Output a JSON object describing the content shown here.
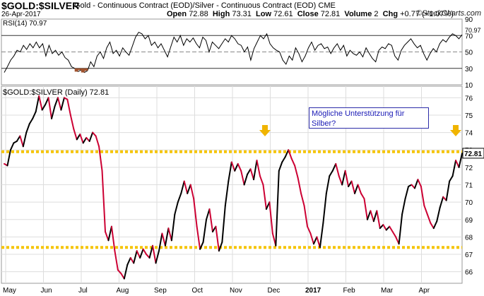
{
  "header": {
    "symbol": "$GOLD:$SILVER",
    "description": "Gold - Continuous Contract (EOD)/Silver - Continuous Contract (EOD)  CME",
    "date": "26-Apr-2017",
    "open_label": "Open",
    "open": "72.88",
    "high_label": "High",
    "high": "73.31",
    "low_label": "Low",
    "low": "72.61",
    "close_label": "Close",
    "close": "72.81",
    "volume_label": "Volume",
    "volume": "2",
    "chg_label": "Chg",
    "chg": "+0.77 (+1.07%)",
    "brand": "©StockCharts.com"
  },
  "annotation": {
    "text": "Mögliche Unterstützung für Silber?"
  },
  "colors": {
    "price_up": "#000000",
    "price_down": "#cc0033",
    "support_line": "#f5c400",
    "arrow": "#f0b400",
    "rsi_line": "#000000",
    "rsi_oversold_fill": "#a0522d",
    "grid": "#dddddd"
  },
  "chart_data": [
    {
      "type": "line",
      "title": "RSI(14) 70.97",
      "indicator": "RSI(14)",
      "last_value": "70.97",
      "ylim": [
        10,
        90
      ],
      "yticks": [
        "90",
        "70",
        "50",
        "30",
        "10"
      ],
      "reference_lines": [
        70,
        50,
        30
      ],
      "values": [
        25,
        32,
        40,
        45,
        52,
        50,
        58,
        53,
        60,
        55,
        62,
        55,
        60,
        45,
        58,
        48,
        52,
        46,
        50,
        43,
        40,
        32,
        30,
        26,
        28,
        25,
        27,
        38,
        32,
        45,
        50,
        42,
        55,
        62,
        48,
        52,
        45,
        55,
        50,
        46,
        57,
        68,
        74,
        72,
        66,
        70,
        58,
        62,
        55,
        60,
        52,
        44,
        56,
        68,
        62,
        70,
        58,
        66,
        62,
        67,
        60,
        55,
        68,
        64,
        50,
        62,
        58,
        54,
        60,
        66,
        62,
        70,
        66,
        60,
        58,
        50,
        56,
        40,
        54,
        62,
        70,
        66,
        72,
        60,
        55,
        52,
        50,
        40,
        35,
        45,
        40,
        55,
        48,
        38,
        45,
        55,
        62,
        52,
        58,
        60,
        54,
        56,
        48,
        55,
        60,
        52,
        58,
        45,
        52,
        48,
        46,
        50,
        44,
        55,
        48,
        42,
        38,
        52,
        56,
        54,
        60,
        58,
        45,
        40,
        52,
        58,
        62,
        66,
        60,
        55,
        58,
        48,
        40,
        48,
        54,
        50,
        60,
        65,
        62,
        68,
        72,
        70,
        66,
        71
      ]
    },
    {
      "type": "line",
      "title": "$GOLD:$SILVER (Daily) 72.81",
      "series_name": "$GOLD:$SILVER (Daily)",
      "last_value": "72.81",
      "last_label": "72.81",
      "ylim": [
        65.5,
        76.5
      ],
      "yticks": [
        "76",
        "75",
        "74",
        "73",
        "72",
        "71",
        "70",
        "69",
        "68",
        "67",
        "66"
      ],
      "x_labels": [
        "May",
        "Jun",
        "Jul",
        "Aug",
        "Sep",
        "Oct",
        "Nov",
        "Dec",
        "2017",
        "Feb",
        "Mar",
        "Apr"
      ],
      "support_levels": [
        72.9,
        67.4
      ],
      "values": [
        72.2,
        72.1,
        73.0,
        73.4,
        73.5,
        73.8,
        73.2,
        74.0,
        74.5,
        74.8,
        75.2,
        76.1,
        75.3,
        75.6,
        76.0,
        74.8,
        75.5,
        76.0,
        75.3,
        76.0,
        75.9,
        75.0,
        74.2,
        73.6,
        73.9,
        73.4,
        73.7,
        73.5,
        74.0,
        73.8,
        73.2,
        71.8,
        68.3,
        67.8,
        68.6,
        67.2,
        66.1,
        65.9,
        65.6,
        66.4,
        66.8,
        66.5,
        67.2,
        66.8,
        67.3,
        67.0,
        66.8,
        67.5,
        66.5,
        67.2,
        68.2,
        67.5,
        68.5,
        67.8,
        69.3,
        70.0,
        70.5,
        71.2,
        70.5,
        71.0,
        70.2,
        68.6,
        67.3,
        67.7,
        69.0,
        69.6,
        68.3,
        68.6,
        67.2,
        67.7,
        69.8,
        71.2,
        72.3,
        71.8,
        72.2,
        71.8,
        71.0,
        71.6,
        71.9,
        71.3,
        72.4,
        71.5,
        71.0,
        69.6,
        70.0,
        68.2,
        67.5,
        71.8,
        72.3,
        72.6,
        73.0,
        72.5,
        72.1,
        71.4,
        70.5,
        69.8,
        68.6,
        68.2,
        67.6,
        68.0,
        67.4,
        68.8,
        70.5,
        71.5,
        71.8,
        72.2,
        71.5,
        71.0,
        71.8,
        70.9,
        71.2,
        70.5,
        71.0,
        70.5,
        70.2,
        69.0,
        69.5,
        68.9,
        69.5,
        68.5,
        68.7,
        68.4,
        68.6,
        68.3,
        68.0,
        67.6,
        69.3,
        70.2,
        70.9,
        71.0,
        70.8,
        71.3,
        70.9,
        69.8,
        69.3,
        68.8,
        68.5,
        68.9,
        69.7,
        70.3,
        70.1,
        71.2,
        71.5,
        72.4,
        72.0,
        72.8
      ]
    }
  ]
}
